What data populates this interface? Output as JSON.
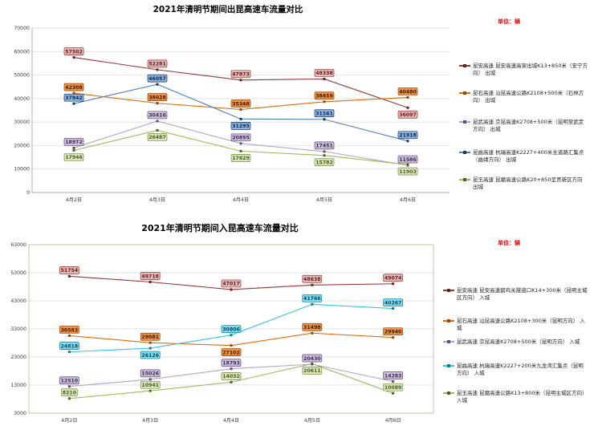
{
  "page": {
    "background": "#FFFFFF"
  },
  "chart_data": [
    {
      "type": "line",
      "title": "2021年清明节期间出昆高速车流量对比",
      "unit_label": "单位：辆",
      "unit_color": "#FF0000",
      "categories": [
        "4月2日",
        "4月3日",
        "4月4日",
        "4月5日",
        "4月6日"
      ],
      "ylim": [
        0,
        70000
      ],
      "ytick_step": 10000,
      "yticks": [
        0,
        10000,
        20000,
        30000,
        40000,
        50000,
        60000,
        70000
      ],
      "grid": true,
      "legend_position": "right",
      "plot_border": false,
      "series": [
        {
          "name": "昆安高速出城",
          "legend": "昆安高速 昆安高速高架出城K13+850米（安宁方向） 出城",
          "color": "#953735",
          "marker": "#632523",
          "label_bg": "#E6B8B7",
          "border": "#953735",
          "label_text": "#5F1F1F",
          "values": [
            57502,
            52281,
            47873,
            48338,
            36097
          ]
        },
        {
          "name": "昆石高速出城",
          "legend": "昆石高速 汕昆高速公路K2108+500米（石林方向） 出城",
          "color": "#E26B0A",
          "marker": "#974806",
          "label_bg": "#ED9246",
          "border": "#974806",
          "label_text": "#3F1D00",
          "values": [
            42308,
            38028,
            35348,
            38659,
            40480
          ]
        },
        {
          "name": "昆武高速出城",
          "legend": "昆武高速 京昆高速K2708+500米（昆明至武定方向） 出城",
          "color": "#B3A2C7",
          "marker": "#604A7B",
          "label_bg": "#CCC0DA",
          "border": "#604A7B",
          "label_text": "#3F3151",
          "values": [
            18972,
            30416,
            20895,
            17451,
            11586
          ]
        },
        {
          "name": "昆曲高速出城",
          "legend": "昆曲高速 杭瑞高速K2227+400米主道路汇集点（曲靖方向） 出城",
          "color": "#4F81BD",
          "marker": "#17375E",
          "label_bg": "#8DB4E2",
          "border": "#17375E",
          "label_text": "#0A2A4A",
          "values": [
            37842,
            46057,
            31295,
            31161,
            21918
          ]
        },
        {
          "name": "昆玉高速出城",
          "legend": "昆玉高速 昆磨高速公路K20+850呈贡新区方向 出城",
          "color": "#9BBB59",
          "marker": "#4F6228",
          "label_bg": "#D8E4BC",
          "border": "#76933C",
          "label_text": "#4F6228",
          "values": [
            17946,
            26487,
            17629,
            15782,
            11903
          ]
        }
      ]
    },
    {
      "type": "line",
      "title": "2021年清明节期间入昆高速车流量对比",
      "unit_label": "单位：辆",
      "unit_color": "#FF0000",
      "categories": [
        "4月2日",
        "4月3日",
        "4月4日",
        "4月5日",
        "4月6日"
      ],
      "ylim": [
        3000,
        63000
      ],
      "ytick_step": 10000,
      "yticks": [
        3000,
        13000,
        23000,
        33000,
        43000,
        53000,
        63000
      ],
      "grid": true,
      "legend_position": "right",
      "plot_border": true,
      "plot_border_color": "#C4BD97",
      "series": [
        {
          "name": "昆安高速入城",
          "legend": "昆安高速 昆安高速碧鸡关隧道口K14+300米（昆明主城区方向） 入城",
          "color": "#953735",
          "marker": "#632523",
          "label_bg": "#E6B8B7",
          "border": "#953735",
          "label_text": "#5F1F1F",
          "values": [
            51754,
            49718,
            47017,
            48638,
            49074
          ]
        },
        {
          "name": "昆石高速入城",
          "legend": "昆石高速 汕昆高速公路K2108+300米（昆明方向） 入城",
          "color": "#E26B0A",
          "marker": "#974806",
          "label_bg": "#ED9246",
          "border": "#974806",
          "label_text": "#3F1D00",
          "values": [
            30583,
            28081,
            27102,
            31498,
            29940
          ]
        },
        {
          "name": "昆武高速入城",
          "legend": "昆武高速 京昆高速K2708+500米（昆明方向） 入城",
          "color": "#B3A2C7",
          "marker": "#604A7B",
          "label_bg": "#CCC0DA",
          "border": "#604A7B",
          "label_text": "#3F3151",
          "values": [
            12510,
            15026,
            18793,
            20430,
            14283
          ]
        },
        {
          "name": "昆曲高速入城",
          "legend": "昆曲高速 杭瑞高速K2227+200米九龙湾汇集点（昆明方向） 入城",
          "color": "#31C7E8",
          "marker": "#0E7A96",
          "label_bg": "#7DDCF2",
          "border": "#0E7A96",
          "label_text": "#074B5C",
          "values": [
            24818,
            26126,
            30806,
            41766,
            40267
          ]
        },
        {
          "name": "昆玉高速入城",
          "legend": "昆玉高速 昆磨高速公路K13+800米（昆明主城区方向） 入城",
          "color": "#9BBB59",
          "marker": "#4F6228",
          "label_bg": "#D8E4BC",
          "border": "#76933C",
          "label_text": "#4F6228",
          "values": [
            8210,
            10941,
            14032,
            20611,
            10089
          ]
        }
      ]
    }
  ]
}
